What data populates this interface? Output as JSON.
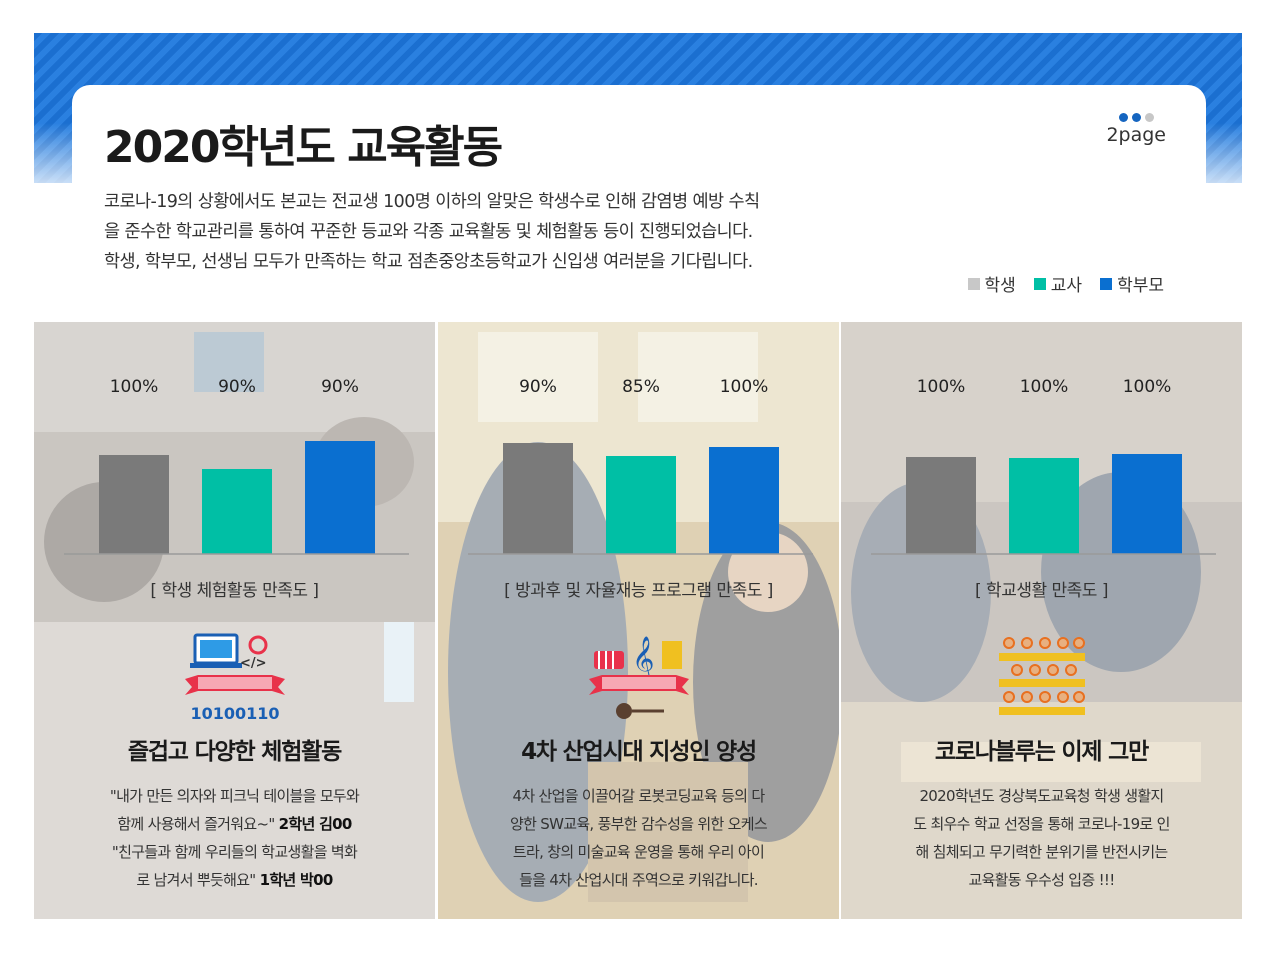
{
  "header": {
    "title": "2020학년도 교육활동",
    "page_label": "2page",
    "intro": [
      "코로나-19의 상황에서도 본교는 전교생 100명 이하의 알맞은 학생수로 인해 감염병 예방 수칙",
      "을 준수한 학교관리를 통하여 꾸준한 등교와 각종 교육활동 및 체험활동 등이 진행되었습니다.",
      "학생, 학부모, 선생님 모두가 만족하는 학교 점촌중앙초등학교가  신입생 여러분을 기다립니다."
    ]
  },
  "legend": [
    {
      "label": "학생",
      "color": "#c8c8c8"
    },
    {
      "label": "교사",
      "color": "#00bfa5"
    },
    {
      "label": "학부모",
      "color": "#0a6fd0"
    }
  ],
  "colors": {
    "student": "#7a7a7a",
    "teacher": "#00bfa5",
    "parent": "#0a6fd0"
  },
  "chart_data": [
    {
      "type": "bar",
      "title": "[ 학생 체험활동 만족도 ]",
      "categories": [
        "학생",
        "교사",
        "학부모"
      ],
      "values": [
        100,
        90,
        90
      ],
      "value_labels": [
        "100%",
        "90%",
        "90%"
      ],
      "bar_tops": [
        133,
        147,
        119
      ]
    },
    {
      "type": "bar",
      "title": "[ 방과후 및 자율재능 프로그램 만족도 ]",
      "categories": [
        "학생",
        "교사",
        "학부모"
      ],
      "values": [
        90,
        85,
        100
      ],
      "value_labels": [
        "90%",
        "85%",
        "100%"
      ],
      "bar_tops": [
        121,
        134,
        125
      ]
    },
    {
      "type": "bar",
      "title": "[ 학교생활 만족도 ]",
      "categories": [
        "학생",
        "교사",
        "학부모"
      ],
      "values": [
        100,
        100,
        100
      ],
      "value_labels": [
        "100%",
        "100%",
        "100%"
      ],
      "bar_tops": [
        135,
        136,
        132
      ]
    }
  ],
  "panels": [
    {
      "icon": "coding-laptop-icon",
      "icon_text": "10100110",
      "heading": "즐겁고 다양한 체험활동",
      "lines": [
        {
          "text": "\"내가 만든 의자와 피크닉 테이블을 모두와",
          "bold": ""
        },
        {
          "text": "함께 사용해서 즐거워요~\"  ",
          "bold": "2학년 김00"
        },
        {
          "text": "\"친구들과 함께 우리들의 학교생활을 벽화",
          "bold": ""
        },
        {
          "text": "로 남겨서 뿌듯해요\"  ",
          "bold": "1학년 박00"
        }
      ]
    },
    {
      "icon": "music-instruments-icon",
      "icon_text": "",
      "heading": "4차 산업시대 지성인 양성",
      "lines": [
        {
          "text": "4차 산업을 이끌어갈 로봇코딩교육 등의 다",
          "bold": ""
        },
        {
          "text": "양한 SW교육, 풍부한 감수성을 위한 오케스",
          "bold": ""
        },
        {
          "text": "트라, 창의 미술교육 운영을 통해 우리 아이",
          "bold": ""
        },
        {
          "text": "들을 4차 산업시대 주역으로 키워갑니다.",
          "bold": ""
        }
      ]
    },
    {
      "icon": "audience-seats-icon",
      "icon_text": "",
      "heading": "코로나블루는 이제 그만",
      "lines": [
        {
          "text": "2020학년도 경상북도교육청 학생 생활지",
          "bold": ""
        },
        {
          "text": "도 최우수 학교 선정을 통해 코로나-19로 인",
          "bold": ""
        },
        {
          "text": "해 침체되고 무기력한 분위기를 반전시키는",
          "bold": ""
        },
        {
          "text": "교육활동 우수성 입증 !!!",
          "bold": ""
        }
      ]
    }
  ]
}
